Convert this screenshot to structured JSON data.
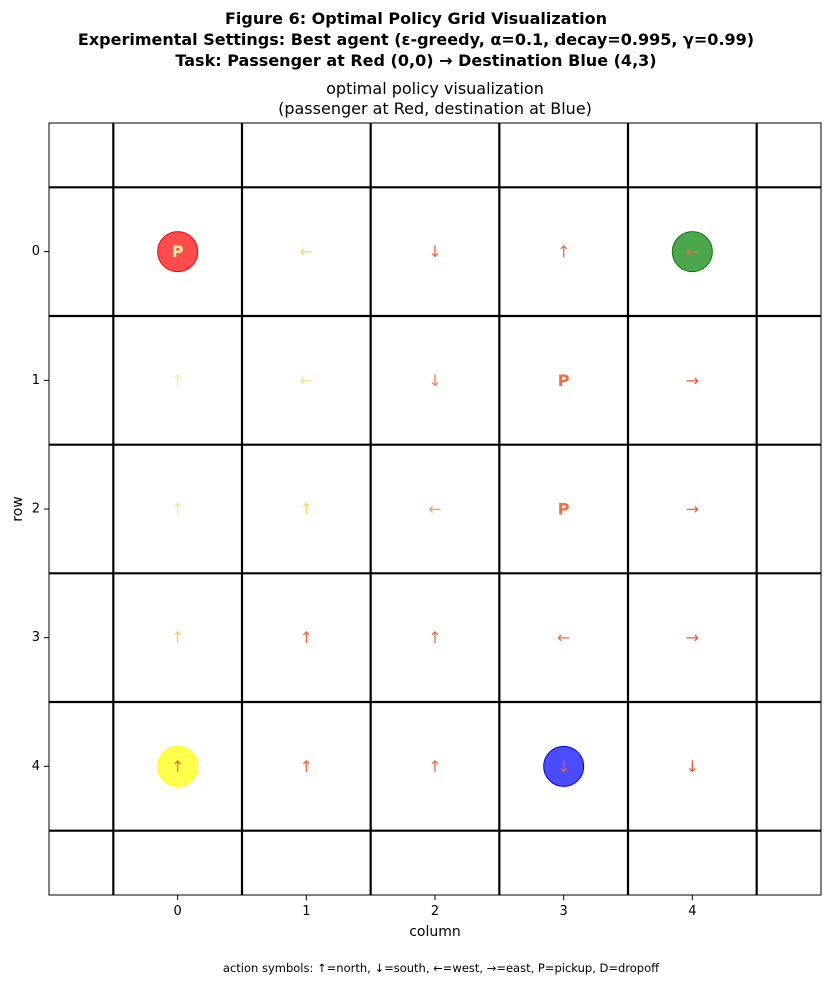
{
  "figure": {
    "suptitle": [
      "Figure 6: Optimal Policy Grid Visualization",
      "Experimental Settings: Best agent (ε-greedy, α=0.1, decay=0.995, γ=0.99)",
      "Task: Passenger at Red (0,0) → Destination Blue (4,3)"
    ],
    "caption": "action symbols: ↑=north, ↓=south, ←=west, →=east, P=pickup, D=dropoff"
  },
  "chart_data": {
    "type": "heatmap",
    "title": [
      "optimal policy visualization",
      "(passenger at Red, destination at Blue)"
    ],
    "xlabel": "column",
    "ylabel": "row",
    "x_ticks": [
      "0",
      "1",
      "2",
      "3",
      "4"
    ],
    "y_ticks": [
      "0",
      "1",
      "2",
      "3",
      "4"
    ],
    "xlim": [
      -1,
      5
    ],
    "ylim": [
      5,
      -1
    ],
    "grid": true,
    "policy": [
      [
        "P",
        "←",
        "↓",
        "↑",
        "←"
      ],
      [
        "↑",
        "←",
        "↓",
        "P",
        "→"
      ],
      [
        "↑",
        "↑",
        "←",
        "P",
        "→"
      ],
      [
        "↑",
        "↑",
        "↑",
        "←",
        "→"
      ],
      [
        "↑",
        "↑",
        "↑",
        "↓",
        "↓"
      ]
    ],
    "symbol_colors": [
      [
        "#fef3a4",
        "#fdd475",
        "#f06140",
        "#f26b43",
        "#f26b43"
      ],
      [
        "#fee99a",
        "#feda87",
        "#f47d4b",
        "#f26b43",
        "#f05a3a"
      ],
      [
        "#fee49a",
        "#fdd36d",
        "#f8a05a",
        "#f26b43",
        "#f05a3a"
      ],
      [
        "#fcc869",
        "#f26b43",
        "#f26b43",
        "#f26b43",
        "#f05a3a"
      ],
      [
        "#f26b43",
        "#f26b43",
        "#f26b43",
        "#f05a3a",
        "#f05a3a"
      ]
    ],
    "locations": [
      {
        "name": "Red",
        "row": 0,
        "col": 0,
        "color": "#ff0000"
      },
      {
        "name": "Green",
        "row": 0,
        "col": 4,
        "color": "#008000"
      },
      {
        "name": "Yellow",
        "row": 4,
        "col": 0,
        "color": "#ffff00"
      },
      {
        "name": "Blue",
        "row": 4,
        "col": 3,
        "color": "#0000ff"
      }
    ]
  }
}
